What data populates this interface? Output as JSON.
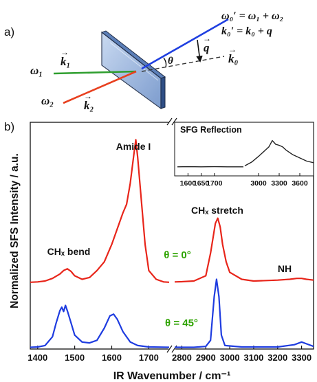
{
  "panel_a": {
    "label": "a)",
    "omega1": "ω₁",
    "k1": "k₁",
    "omega2": "ω₂",
    "k2": "k₂",
    "theta": "θ",
    "q": "q",
    "k0": "k₀",
    "eq1": "ω₀′ = ω₁ + ω₂",
    "eq2": "k₀′ = k₀ + q",
    "colors": {
      "beam1": "#2e9e2e",
      "beam2": "#e8401f",
      "sfg": "#1f3fe0",
      "prism": "#7fa6dd"
    }
  },
  "panel_b_label": "b)",
  "chart_data": [
    {
      "type": "line",
      "title": "",
      "xlabel": "IR Wavenumber / cm⁻¹",
      "ylabel": "Normalized SFS Intensity / a.u.",
      "axis_break": true,
      "segments": [
        {
          "xlim": [
            1380,
            1755
          ],
          "ticks": [
            1400,
            1500,
            1600,
            1700
          ]
        },
        {
          "xlim": [
            2770,
            3350
          ],
          "ticks": [
            2800,
            2900,
            3000,
            3100,
            3200,
            3300
          ]
        }
      ],
      "ylim": [
        0,
        1.3
      ],
      "series": [
        {
          "name": "θ = 0°",
          "color": "#e8251a",
          "label_color": "#2ea300",
          "points": [
            [
              1380,
              0.383
            ],
            [
              1400,
              0.385
            ],
            [
              1420,
              0.39
            ],
            [
              1440,
              0.405
            ],
            [
              1460,
              0.43
            ],
            [
              1470,
              0.45
            ],
            [
              1480,
              0.46
            ],
            [
              1490,
              0.445
            ],
            [
              1500,
              0.42
            ],
            [
              1520,
              0.4
            ],
            [
              1540,
              0.41
            ],
            [
              1560,
              0.45
            ],
            [
              1580,
              0.5
            ],
            [
              1600,
              0.6
            ],
            [
              1620,
              0.72
            ],
            [
              1630,
              0.78
            ],
            [
              1640,
              0.83
            ],
            [
              1650,
              0.95
            ],
            [
              1660,
              1.12
            ],
            [
              1665,
              1.2
            ],
            [
              1670,
              1.1
            ],
            [
              1680,
              0.85
            ],
            [
              1690,
              0.6
            ],
            [
              1700,
              0.45
            ],
            [
              1720,
              0.4
            ],
            [
              1740,
              0.385
            ],
            [
              1755,
              0.383
            ],
            [
              2770,
              0.385
            ],
            [
              2800,
              0.386
            ],
            [
              2850,
              0.39
            ],
            [
              2900,
              0.42
            ],
            [
              2920,
              0.55
            ],
            [
              2940,
              0.72
            ],
            [
              2950,
              0.75
            ],
            [
              2960,
              0.7
            ],
            [
              2970,
              0.6
            ],
            [
              2985,
              0.5
            ],
            [
              3000,
              0.44
            ],
            [
              3050,
              0.4
            ],
            [
              3100,
              0.39
            ],
            [
              3200,
              0.395
            ],
            [
              3250,
              0.4
            ],
            [
              3280,
              0.405
            ],
            [
              3300,
              0.405
            ],
            [
              3320,
              0.4
            ],
            [
              3350,
              0.395
            ]
          ]
        },
        {
          "name": "θ = 45°",
          "color": "#1e3ce0",
          "label_color": "#2ea300",
          "points": [
            [
              1380,
              0.01
            ],
            [
              1400,
              0.012
            ],
            [
              1420,
              0.02
            ],
            [
              1440,
              0.07
            ],
            [
              1450,
              0.15
            ],
            [
              1460,
              0.22
            ],
            [
              1465,
              0.24
            ],
            [
              1470,
              0.215
            ],
            [
              1475,
              0.25
            ],
            [
              1480,
              0.22
            ],
            [
              1490,
              0.15
            ],
            [
              1500,
              0.08
            ],
            [
              1520,
              0.04
            ],
            [
              1540,
              0.035
            ],
            [
              1560,
              0.05
            ],
            [
              1580,
              0.12
            ],
            [
              1595,
              0.19
            ],
            [
              1605,
              0.2
            ],
            [
              1615,
              0.17
            ],
            [
              1630,
              0.1
            ],
            [
              1650,
              0.04
            ],
            [
              1670,
              0.02
            ],
            [
              1700,
              0.012
            ],
            [
              1755,
              0.01
            ],
            [
              2770,
              0.01
            ],
            [
              2850,
              0.01
            ],
            [
              2900,
              0.015
            ],
            [
              2920,
              0.05
            ],
            [
              2935,
              0.3
            ],
            [
              2945,
              0.4
            ],
            [
              2955,
              0.3
            ],
            [
              2965,
              0.08
            ],
            [
              2980,
              0.02
            ],
            [
              3050,
              0.012
            ],
            [
              3200,
              0.012
            ],
            [
              3270,
              0.025
            ],
            [
              3300,
              0.04
            ],
            [
              3320,
              0.03
            ],
            [
              3350,
              0.015
            ]
          ]
        }
      ],
      "annotations": [
        {
          "text": "Amide I",
          "x": 1660,
          "y": 1.3
        },
        {
          "text": "CHₓ bend",
          "x": 1460,
          "y": 0.56
        },
        {
          "text": "CHₓ stretch",
          "x": 2960,
          "y": 0.84
        },
        {
          "text": "NH",
          "x": 3300,
          "y": 0.45
        },
        {
          "text": "θ = 0°",
          "x": 2550,
          "y": 0.5
        },
        {
          "text": "θ = 45°",
          "x": 2550,
          "y": 0.12
        }
      ]
    },
    {
      "type": "line",
      "title": "SFG Reflection",
      "axis_break": true,
      "segments": [
        {
          "xlim": [
            1560,
            1810
          ],
          "ticks": [
            1600,
            1650,
            1700
          ]
        },
        {
          "xlim": [
            2800,
            3800
          ],
          "ticks": [
            3000,
            3300,
            3600
          ]
        }
      ],
      "ylim": [
        0,
        1
      ],
      "series": [
        {
          "name": "",
          "color": "#222222",
          "points": [
            [
              1560,
              0.07
            ],
            [
              1600,
              0.075
            ],
            [
              1650,
              0.07
            ],
            [
              1700,
              0.075
            ],
            [
              1750,
              0.07
            ],
            [
              1810,
              0.07
            ],
            [
              2800,
              0.1
            ],
            [
              2900,
              0.22
            ],
            [
              3000,
              0.4
            ],
            [
              3100,
              0.6
            ],
            [
              3150,
              0.7
            ],
            [
              3200,
              0.9
            ],
            [
              3250,
              0.78
            ],
            [
              3300,
              0.75
            ],
            [
              3350,
              0.7
            ],
            [
              3400,
              0.6
            ],
            [
              3500,
              0.45
            ],
            [
              3600,
              0.35
            ],
            [
              3700,
              0.25
            ],
            [
              3800,
              0.2
            ]
          ]
        }
      ]
    }
  ]
}
